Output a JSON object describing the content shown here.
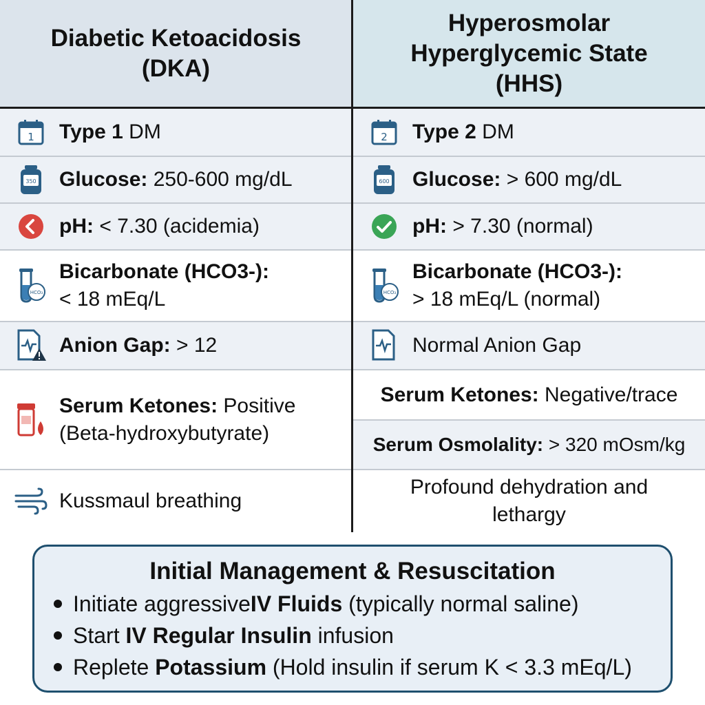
{
  "dka": {
    "header": "Diabetic Ketoacidosis (DKA)",
    "type": {
      "bold": "Type 1",
      "rest": " DM",
      "icon": "calendar-1-icon",
      "icon_text": "1"
    },
    "glucose": {
      "bold": "Glucose:",
      "rest": " 250-600 mg/dL",
      "icon": "glucose-meter-icon",
      "icon_text": "350"
    },
    "ph": {
      "bold": "pH:",
      "rest": " < 7.30 (acidemia)",
      "icon": "red-arrow-circle-icon"
    },
    "bicarb": {
      "bold": "Bicarbonate (HCO3-):",
      "rest": "< 18 mEq/L",
      "icon": "test-tube-icon",
      "icon_text": "HCO₃"
    },
    "anion": {
      "bold": "Anion Gap:",
      "rest": " > 12",
      "icon": "document-warning-icon"
    },
    "ketones": {
      "bold": "Serum Ketones:",
      "rest": " Positive (Beta-hydroxybutyrate)",
      "icon": "blood-vial-icon"
    },
    "breathing": {
      "text": "Kussmaul breathing",
      "icon": "wind-icon"
    }
  },
  "hhs": {
    "header": "Hyperosmolar Hyperglycemic State (HHS)",
    "type": {
      "bold": "Type 2",
      "rest": " DM",
      "icon": "calendar-2-icon",
      "icon_text": "2"
    },
    "glucose": {
      "bold": "Glucose:",
      "rest": " > 600 mg/dL",
      "icon": "glucose-meter-icon",
      "icon_text": "600"
    },
    "ph": {
      "bold": "pH:",
      "rest": " > 7.30 (normal)",
      "icon": "green-check-circle-icon"
    },
    "bicarb": {
      "bold": "Bicarbonate (HCO3-):",
      "rest": "> 18 mEq/L (normal)",
      "icon": "test-tube-icon",
      "icon_text": "HCO₃"
    },
    "anion": {
      "text": "Normal Anion Gap",
      "icon": "document-pulse-icon"
    },
    "ketones": {
      "bold": "Serum Ketones:",
      "rest": " Negative/trace"
    },
    "osmolality": {
      "bold": "Serum Osmolality:",
      "rest": " > 320 mOsm/kg"
    },
    "dehydration": {
      "text": "Profound dehydration and lethargy"
    }
  },
  "management": {
    "title": "Initial Management & Resuscitation",
    "items": [
      {
        "pre": "Initiate aggressive ",
        "bold": "IV Fluids",
        "post": " (typically normal saline)"
      },
      {
        "pre": "Start ",
        "bold": "IV Regular Insulin",
        "post": " infusion"
      },
      {
        "pre": "Replete ",
        "bold": "Potassium",
        "post": " (Hold insulin if serum K < 3.3 mEq/L)"
      }
    ]
  },
  "colors": {
    "header_left": "#dce4ec",
    "header_right": "#d6e6ec",
    "icon_blue": "#2b5f86",
    "ph_red": "#d9463f",
    "ph_green": "#3aa556",
    "vial_red": "#cf3b34",
    "box_border": "#1e4f6e"
  }
}
